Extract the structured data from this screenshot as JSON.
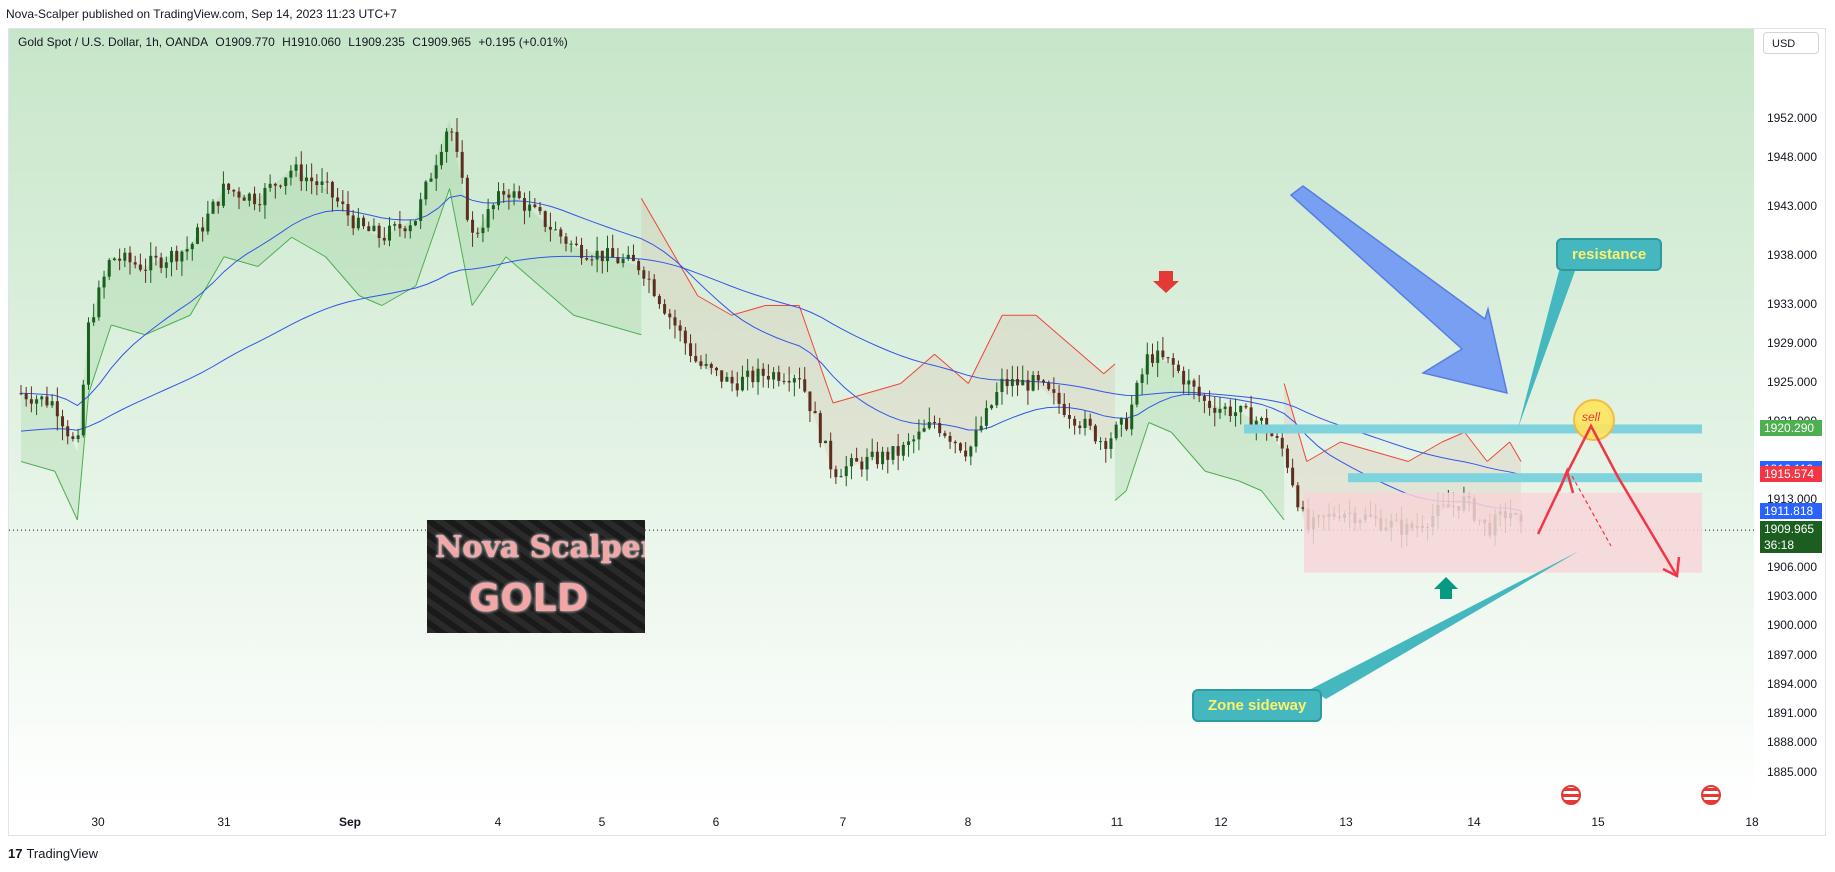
{
  "header": {
    "publisher": "Nova-Scalper published on TradingView.com, Sep 14, 2023 11:23 UTC+7"
  },
  "symbol": {
    "name": "Gold Spot / U.S. Dollar, 1h, OANDA",
    "open": "O1909.770",
    "high": "H1910.060",
    "low": "L1909.235",
    "close": "C1909.965",
    "change": "+0.195 (+0.01%)"
  },
  "currency_button": "USD",
  "chart_data": {
    "type": "candlestick",
    "symbol": "XAUUSD",
    "timeframe": "1h",
    "ylim": [
      1883.0,
      1955.0
    ],
    "price_ticks": [
      "1952.000",
      "1948.000",
      "1943.000",
      "1938.000",
      "1933.000",
      "1929.000",
      "1925.000",
      "1921.000",
      "1916.000",
      "1913.000",
      "1909.000",
      "1906.000",
      "1903.000",
      "1900.000",
      "1897.000",
      "1894.000",
      "1891.000",
      "1888.000",
      "1885.000"
    ],
    "date_ticks": [
      "30",
      "31",
      "Sep",
      "4",
      "5",
      "6",
      "7",
      "8",
      "11",
      "12",
      "13",
      "14",
      "15",
      "18"
    ],
    "close_path": [
      {
        "t": 0,
        "p": 1924
      },
      {
        "t": 3,
        "p": 1923
      },
      {
        "t": 5,
        "p": 1918
      },
      {
        "t": 6,
        "p": 1931
      },
      {
        "t": 8,
        "p": 1938
      },
      {
        "t": 11,
        "p": 1937
      },
      {
        "t": 15,
        "p": 1939
      },
      {
        "t": 18,
        "p": 1945
      },
      {
        "t": 21,
        "p": 1944
      },
      {
        "t": 24,
        "p": 1947
      },
      {
        "t": 27,
        "p": 1945
      },
      {
        "t": 30,
        "p": 1941
      },
      {
        "t": 32,
        "p": 1940
      },
      {
        "t": 35,
        "p": 1942
      },
      {
        "t": 38,
        "p": 1952
      },
      {
        "t": 40,
        "p": 1940
      },
      {
        "t": 43,
        "p": 1945
      },
      {
        "t": 46,
        "p": 1942
      },
      {
        "t": 49,
        "p": 1939
      },
      {
        "t": 52,
        "p": 1938
      },
      {
        "t": 55,
        "p": 1937
      },
      {
        "t": 57,
        "p": 1933
      },
      {
        "t": 60,
        "p": 1927
      },
      {
        "t": 63,
        "p": 1925
      },
      {
        "t": 66,
        "p": 1926
      },
      {
        "t": 69,
        "p": 1926
      },
      {
        "t": 72,
        "p": 1916
      },
      {
        "t": 75,
        "p": 1917
      },
      {
        "t": 78,
        "p": 1918
      },
      {
        "t": 81,
        "p": 1921
      },
      {
        "t": 84,
        "p": 1918
      },
      {
        "t": 87,
        "p": 1925
      },
      {
        "t": 90,
        "p": 1925
      },
      {
        "t": 93,
        "p": 1922
      },
      {
        "t": 96,
        "p": 1919
      },
      {
        "t": 98,
        "p": 1921
      },
      {
        "t": 100,
        "p": 1928
      },
      {
        "t": 102,
        "p": 1927
      },
      {
        "t": 105,
        "p": 1923
      },
      {
        "t": 108,
        "p": 1922
      },
      {
        "t": 110,
        "p": 1921
      },
      {
        "t": 112,
        "p": 1918
      },
      {
        "t": 114,
        "p": 1910
      },
      {
        "t": 117,
        "p": 1912
      },
      {
        "t": 120,
        "p": 1911
      },
      {
        "t": 123,
        "p": 1910
      },
      {
        "t": 126,
        "p": 1912
      },
      {
        "t": 128,
        "p": 1913
      },
      {
        "t": 130,
        "p": 1910
      },
      {
        "t": 132,
        "p": 1912
      },
      {
        "t": 133,
        "p": 1910
      }
    ],
    "overlays": {
      "ema_fast_color": "#3156e8",
      "ema_slow_color": "#3156e8",
      "supertrend_up_color": "#4caf50",
      "supertrend_down_color": "#f44336"
    },
    "annotations": {
      "resistance_label": "resistance",
      "zone_label": "Zone sideway",
      "sell_label": "sell"
    }
  },
  "price_badges": [
    {
      "value": "1920.290",
      "color": "#4caf50"
    },
    {
      "value": "1916.119",
      "color": "#2962ff"
    },
    {
      "value": "1915.574",
      "color": "#f23645"
    },
    {
      "value": "1911.818",
      "color": "#2962ff"
    },
    {
      "value": "1909.965",
      "sub": "36:18",
      "color": "#1b5e20"
    }
  ],
  "logo": {
    "title": "Nova Scalper",
    "subtitle": "GOLD"
  },
  "footer": {
    "brand": "TradingView"
  },
  "colors": {
    "bg_top": "#c8e6c9",
    "bg_bottom": "#ffffff",
    "zone_fill": "#f7d6d8",
    "resistance_band": "#7fd3dc",
    "arrow_red": "#f23645",
    "arrow_blue": "#6f97f5"
  }
}
